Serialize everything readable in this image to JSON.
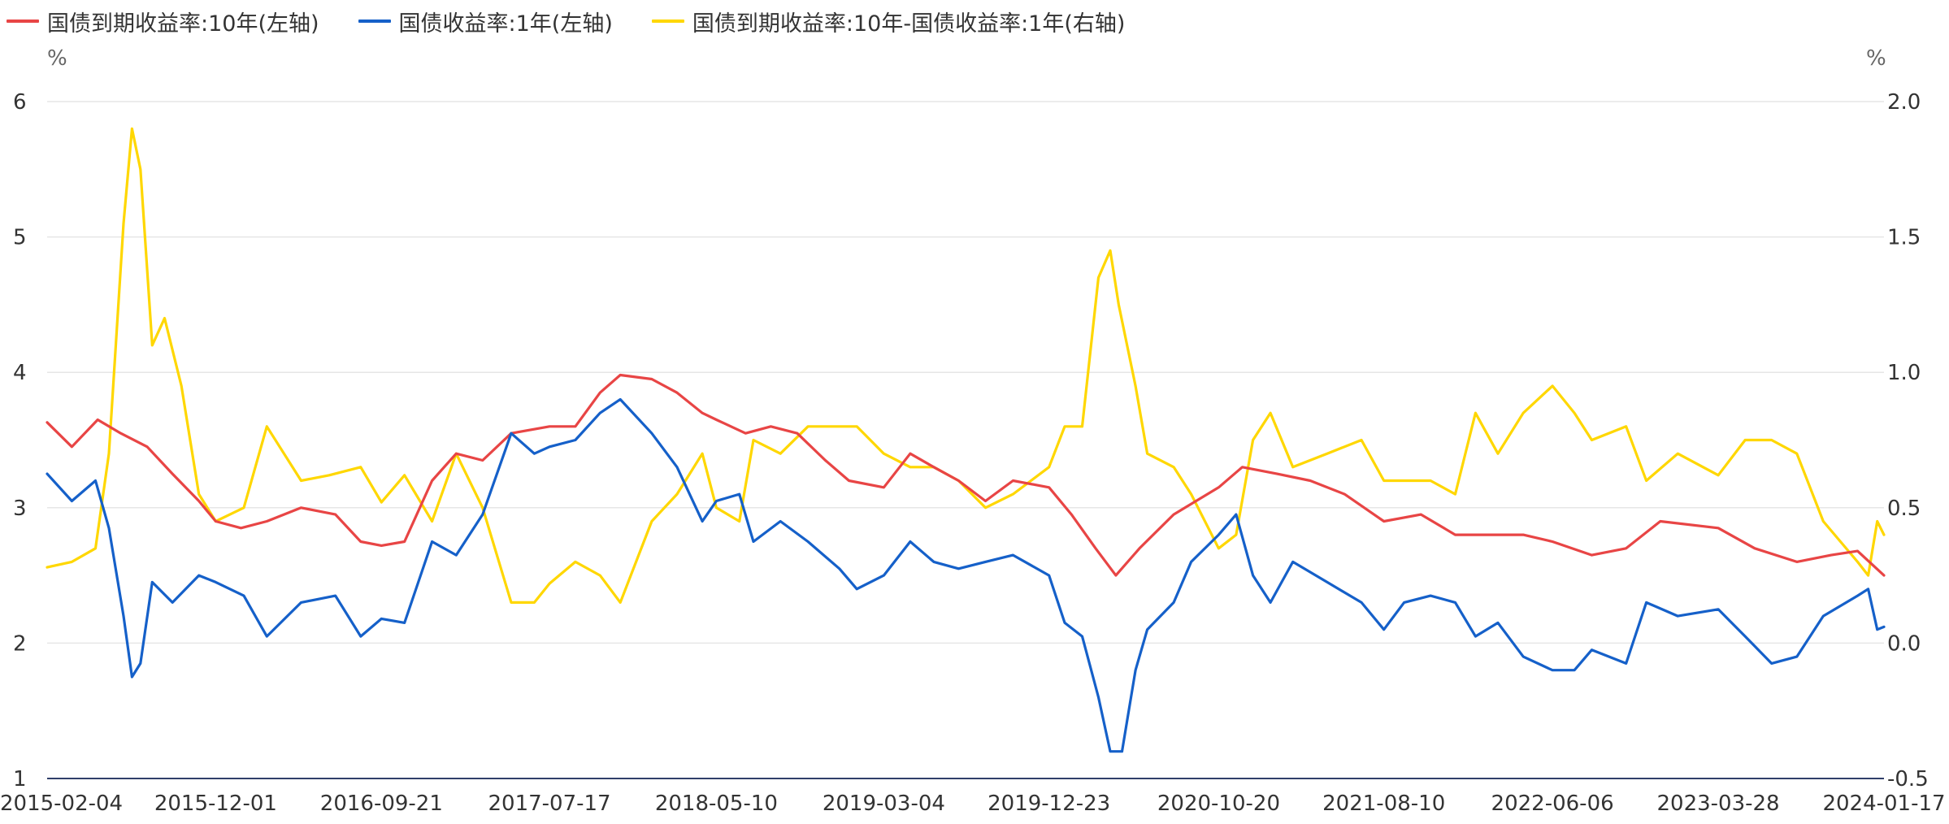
{
  "colors": {
    "ten_year": "#E84545",
    "one_year": "#1560C9",
    "spread": "#FFD700",
    "grid": "#E6E6E6",
    "axis": "#2F3F6A"
  },
  "chart_data": {
    "type": "line",
    "left_unit": "%",
    "right_unit": "%",
    "left_axis": {
      "min": 1,
      "max": 6,
      "ticks": [
        "6",
        "5",
        "4",
        "3",
        "2",
        "1"
      ]
    },
    "right_axis": {
      "min": -0.5,
      "max": 2.0,
      "ticks": [
        "2.0",
        "1.5",
        "1.0",
        "0.5",
        "0.0",
        "-0.5"
      ]
    },
    "x_ticks": [
      "2015-02-04",
      "2015-12-01",
      "2016-09-21",
      "2017-07-17",
      "2018-05-10",
      "2019-03-04",
      "2019-12-23",
      "2020-10-20",
      "2021-08-10",
      "2022-06-06",
      "2023-03-28",
      "2024-01-17"
    ],
    "grid": true,
    "legend_position": "top-left",
    "series": [
      {
        "name": "国债到期收益率:10年(左轴)",
        "axis": "left",
        "points": [
          [
            "2015-02-04",
            3.63
          ],
          [
            "2015-03-20",
            3.45
          ],
          [
            "2015-05-05",
            3.65
          ],
          [
            "2015-06-15",
            3.55
          ],
          [
            "2015-08-01",
            3.45
          ],
          [
            "2015-09-15",
            3.25
          ],
          [
            "2015-11-01",
            3.05
          ],
          [
            "2015-12-01",
            2.9
          ],
          [
            "2016-01-15",
            2.85
          ],
          [
            "2016-03-01",
            2.9
          ],
          [
            "2016-05-01",
            3.0
          ],
          [
            "2016-07-01",
            2.95
          ],
          [
            "2016-08-15",
            2.75
          ],
          [
            "2016-09-21",
            2.72
          ],
          [
            "2016-11-01",
            2.75
          ],
          [
            "2016-12-20",
            3.2
          ],
          [
            "2017-02-01",
            3.4
          ],
          [
            "2017-03-20",
            3.35
          ],
          [
            "2017-05-10",
            3.55
          ],
          [
            "2017-07-17",
            3.6
          ],
          [
            "2017-09-01",
            3.6
          ],
          [
            "2017-10-15",
            3.85
          ],
          [
            "2017-11-20",
            3.98
          ],
          [
            "2018-01-15",
            3.95
          ],
          [
            "2018-03-01",
            3.85
          ],
          [
            "2018-04-15",
            3.7
          ],
          [
            "2018-05-10",
            3.65
          ],
          [
            "2018-07-01",
            3.55
          ],
          [
            "2018-08-15",
            3.6
          ],
          [
            "2018-10-01",
            3.55
          ],
          [
            "2018-11-20",
            3.35
          ],
          [
            "2019-01-01",
            3.2
          ],
          [
            "2019-03-04",
            3.15
          ],
          [
            "2019-04-20",
            3.4
          ],
          [
            "2019-06-01",
            3.3
          ],
          [
            "2019-07-15",
            3.2
          ],
          [
            "2019-09-01",
            3.05
          ],
          [
            "2019-10-20",
            3.2
          ],
          [
            "2019-12-23",
            3.15
          ],
          [
            "2020-02-01",
            2.95
          ],
          [
            "2020-03-15",
            2.7
          ],
          [
            "2020-04-20",
            2.5
          ],
          [
            "2020-06-01",
            2.7
          ],
          [
            "2020-08-01",
            2.95
          ],
          [
            "2020-10-20",
            3.15
          ],
          [
            "2020-12-01",
            3.3
          ],
          [
            "2021-02-01",
            3.25
          ],
          [
            "2021-04-01",
            3.2
          ],
          [
            "2021-06-01",
            3.1
          ],
          [
            "2021-08-10",
            2.9
          ],
          [
            "2021-10-15",
            2.95
          ],
          [
            "2021-12-15",
            2.8
          ],
          [
            "2022-02-15",
            2.8
          ],
          [
            "2022-04-15",
            2.8
          ],
          [
            "2022-06-06",
            2.75
          ],
          [
            "2022-08-15",
            2.65
          ],
          [
            "2022-10-15",
            2.7
          ],
          [
            "2022-12-15",
            2.9
          ],
          [
            "2023-03-28",
            2.85
          ],
          [
            "2023-06-01",
            2.7
          ],
          [
            "2023-08-15",
            2.6
          ],
          [
            "2023-10-15",
            2.65
          ],
          [
            "2023-12-01",
            2.68
          ],
          [
            "2024-01-17",
            2.5
          ]
        ]
      },
      {
        "name": "国债收益率:1年(左轴)",
        "axis": "left",
        "points": [
          [
            "2015-02-04",
            3.25
          ],
          [
            "2015-03-20",
            3.05
          ],
          [
            "2015-05-01",
            3.2
          ],
          [
            "2015-05-25",
            2.85
          ],
          [
            "2015-06-20",
            2.2
          ],
          [
            "2015-07-05",
            1.75
          ],
          [
            "2015-07-20",
            1.85
          ],
          [
            "2015-08-10",
            2.45
          ],
          [
            "2015-09-15",
            2.3
          ],
          [
            "2015-11-01",
            2.5
          ],
          [
            "2015-12-01",
            2.45
          ],
          [
            "2016-01-20",
            2.35
          ],
          [
            "2016-03-01",
            2.05
          ],
          [
            "2016-05-01",
            2.3
          ],
          [
            "2016-07-01",
            2.35
          ],
          [
            "2016-08-15",
            2.05
          ],
          [
            "2016-09-21",
            2.18
          ],
          [
            "2016-11-01",
            2.15
          ],
          [
            "2016-12-20",
            2.75
          ],
          [
            "2017-02-01",
            2.65
          ],
          [
            "2017-03-20",
            2.95
          ],
          [
            "2017-05-10",
            3.55
          ],
          [
            "2017-06-20",
            3.4
          ],
          [
            "2017-07-17",
            3.45
          ],
          [
            "2017-09-01",
            3.5
          ],
          [
            "2017-10-15",
            3.7
          ],
          [
            "2017-11-20",
            3.8
          ],
          [
            "2018-01-15",
            3.55
          ],
          [
            "2018-03-01",
            3.3
          ],
          [
            "2018-04-15",
            2.9
          ],
          [
            "2018-05-10",
            3.05
          ],
          [
            "2018-06-20",
            3.1
          ],
          [
            "2018-07-15",
            2.75
          ],
          [
            "2018-09-01",
            2.9
          ],
          [
            "2018-10-20",
            2.75
          ],
          [
            "2018-12-15",
            2.55
          ],
          [
            "2019-01-15",
            2.4
          ],
          [
            "2019-03-04",
            2.5
          ],
          [
            "2019-04-20",
            2.75
          ],
          [
            "2019-06-01",
            2.6
          ],
          [
            "2019-07-15",
            2.55
          ],
          [
            "2019-09-01",
            2.6
          ],
          [
            "2019-10-20",
            2.65
          ],
          [
            "2019-12-23",
            2.5
          ],
          [
            "2020-01-20",
            2.15
          ],
          [
            "2020-02-20",
            2.05
          ],
          [
            "2020-03-20",
            1.6
          ],
          [
            "2020-04-10",
            1.2
          ],
          [
            "2020-05-01",
            1.2
          ],
          [
            "2020-05-25",
            1.8
          ],
          [
            "2020-06-15",
            2.1
          ],
          [
            "2020-08-01",
            2.3
          ],
          [
            "2020-09-01",
            2.6
          ],
          [
            "2020-10-20",
            2.8
          ],
          [
            "2020-11-20",
            2.95
          ],
          [
            "2020-12-20",
            2.5
          ],
          [
            "2021-01-20",
            2.3
          ],
          [
            "2021-03-01",
            2.6
          ],
          [
            "2021-05-01",
            2.45
          ],
          [
            "2021-07-01",
            2.3
          ],
          [
            "2021-08-10",
            2.1
          ],
          [
            "2021-09-15",
            2.3
          ],
          [
            "2021-11-01",
            2.35
          ],
          [
            "2021-12-15",
            2.3
          ],
          [
            "2022-01-20",
            2.05
          ],
          [
            "2022-03-01",
            2.15
          ],
          [
            "2022-04-15",
            1.9
          ],
          [
            "2022-06-06",
            1.8
          ],
          [
            "2022-07-15",
            1.8
          ],
          [
            "2022-08-15",
            1.95
          ],
          [
            "2022-10-15",
            1.85
          ],
          [
            "2022-11-20",
            2.3
          ],
          [
            "2023-01-15",
            2.2
          ],
          [
            "2023-03-28",
            2.25
          ],
          [
            "2023-05-15",
            2.05
          ],
          [
            "2023-07-01",
            1.85
          ],
          [
            "2023-08-15",
            1.9
          ],
          [
            "2023-10-01",
            2.2
          ],
          [
            "2023-12-01",
            2.35
          ],
          [
            "2023-12-20",
            2.4
          ],
          [
            "2024-01-05",
            2.1
          ],
          [
            "2024-01-17",
            2.12
          ]
        ]
      },
      {
        "name": "国债到期收益率:10年-国债收益率:1年(右轴)",
        "axis": "right",
        "points": [
          [
            "2015-02-04",
            0.28
          ],
          [
            "2015-03-20",
            0.3
          ],
          [
            "2015-05-01",
            0.35
          ],
          [
            "2015-05-25",
            0.7
          ],
          [
            "2015-06-20",
            1.55
          ],
          [
            "2015-07-05",
            1.9
          ],
          [
            "2015-07-20",
            1.75
          ],
          [
            "2015-08-10",
            1.1
          ],
          [
            "2015-09-01",
            1.2
          ],
          [
            "2015-10-01",
            0.95
          ],
          [
            "2015-11-01",
            0.55
          ],
          [
            "2015-12-01",
            0.45
          ],
          [
            "2016-01-20",
            0.5
          ],
          [
            "2016-03-01",
            0.8
          ],
          [
            "2016-05-01",
            0.6
          ],
          [
            "2016-06-20",
            0.62
          ],
          [
            "2016-08-15",
            0.65
          ],
          [
            "2016-09-21",
            0.52
          ],
          [
            "2016-11-01",
            0.62
          ],
          [
            "2016-12-20",
            0.45
          ],
          [
            "2017-02-01",
            0.7
          ],
          [
            "2017-03-20",
            0.5
          ],
          [
            "2017-05-10",
            0.15
          ],
          [
            "2017-06-20",
            0.15
          ],
          [
            "2017-07-17",
            0.22
          ],
          [
            "2017-09-01",
            0.3
          ],
          [
            "2017-10-15",
            0.25
          ],
          [
            "2017-11-20",
            0.15
          ],
          [
            "2018-01-15",
            0.45
          ],
          [
            "2018-03-01",
            0.55
          ],
          [
            "2018-04-15",
            0.7
          ],
          [
            "2018-05-10",
            0.5
          ],
          [
            "2018-06-20",
            0.45
          ],
          [
            "2018-07-15",
            0.75
          ],
          [
            "2018-09-01",
            0.7
          ],
          [
            "2018-10-20",
            0.8
          ],
          [
            "2018-12-15",
            0.8
          ],
          [
            "2019-01-15",
            0.8
          ],
          [
            "2019-03-04",
            0.7
          ],
          [
            "2019-04-20",
            0.65
          ],
          [
            "2019-06-01",
            0.65
          ],
          [
            "2019-07-15",
            0.6
          ],
          [
            "2019-09-01",
            0.5
          ],
          [
            "2019-10-20",
            0.55
          ],
          [
            "2019-12-23",
            0.65
          ],
          [
            "2020-01-20",
            0.8
          ],
          [
            "2020-02-20",
            0.8
          ],
          [
            "2020-03-20",
            1.35
          ],
          [
            "2020-04-10",
            1.45
          ],
          [
            "2020-04-25",
            1.25
          ],
          [
            "2020-05-25",
            0.95
          ],
          [
            "2020-06-15",
            0.7
          ],
          [
            "2020-08-01",
            0.65
          ],
          [
            "2020-09-01",
            0.55
          ],
          [
            "2020-10-20",
            0.35
          ],
          [
            "2020-11-20",
            0.4
          ],
          [
            "2020-12-20",
            0.75
          ],
          [
            "2021-01-20",
            0.85
          ],
          [
            "2021-03-01",
            0.65
          ],
          [
            "2021-05-01",
            0.7
          ],
          [
            "2021-07-01",
            0.75
          ],
          [
            "2021-08-10",
            0.6
          ],
          [
            "2021-09-15",
            0.6
          ],
          [
            "2021-11-01",
            0.6
          ],
          [
            "2021-12-15",
            0.55
          ],
          [
            "2022-01-20",
            0.85
          ],
          [
            "2022-03-01",
            0.7
          ],
          [
            "2022-04-15",
            0.85
          ],
          [
            "2022-06-06",
            0.95
          ],
          [
            "2022-07-15",
            0.85
          ],
          [
            "2022-08-15",
            0.75
          ],
          [
            "2022-10-15",
            0.8
          ],
          [
            "2022-11-20",
            0.6
          ],
          [
            "2023-01-15",
            0.7
          ],
          [
            "2023-03-28",
            0.62
          ],
          [
            "2023-05-15",
            0.75
          ],
          [
            "2023-07-01",
            0.75
          ],
          [
            "2023-08-15",
            0.7
          ],
          [
            "2023-10-01",
            0.45
          ],
          [
            "2023-12-01",
            0.3
          ],
          [
            "2023-12-20",
            0.25
          ],
          [
            "2024-01-05",
            0.45
          ],
          [
            "2024-01-17",
            0.4
          ]
        ]
      }
    ]
  }
}
